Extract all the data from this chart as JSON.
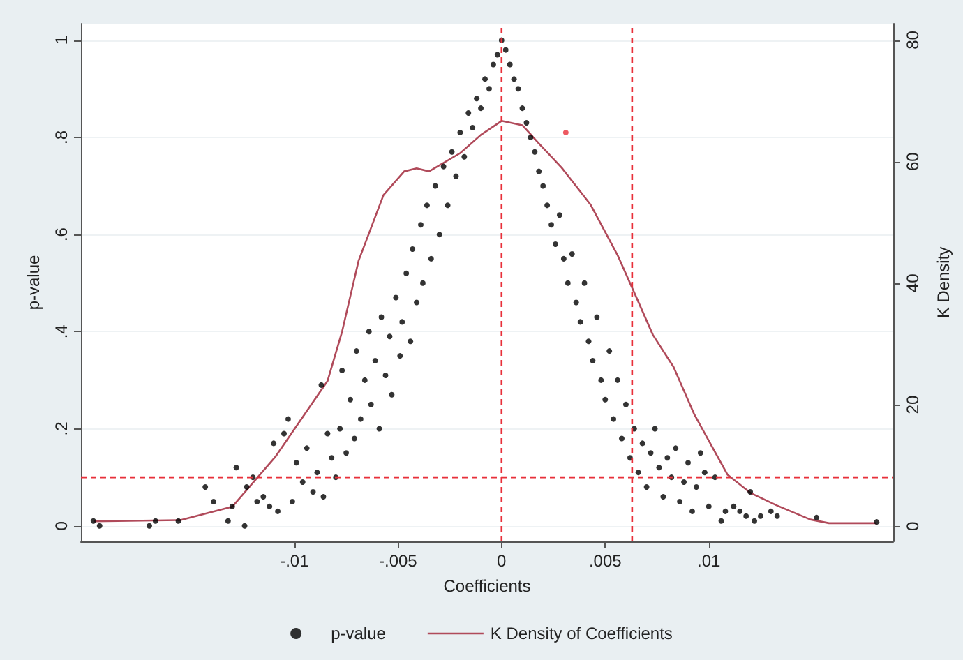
{
  "chart_data": {
    "type": "scatter",
    "xlabel": "Coefficients",
    "ylabel": "p-value",
    "y2label": "K Density",
    "xlim": [
      -0.0203,
      0.0189
    ],
    "xticks": [
      {
        "value": -0.01,
        "label": "-.01"
      },
      {
        "value": -0.005,
        "label": "-.005"
      },
      0,
      {
        "value": 0.005,
        "label": ".005"
      },
      {
        "value": 0.01,
        "label": ".01"
      }
    ],
    "ylim": [
      -0.032,
      1.034
    ],
    "yticks": [
      0,
      {
        "value": 0.2,
        "label": ".2"
      },
      {
        "value": 0.4,
        "label": ".4"
      },
      {
        "value": 0.6,
        "label": ".6"
      },
      {
        "value": 0.8,
        "label": ".8"
      },
      1
    ],
    "y2lim": [
      -2.5,
      82.7
    ],
    "y2ticks": [
      0,
      20,
      40,
      60,
      80
    ],
    "grid": "y",
    "legend": "bottom",
    "marker": "circle",
    "ref_lines": [
      {
        "axis": "x",
        "value": 0,
        "color": "#e8303a",
        "line_style": "dashed"
      },
      {
        "axis": "x",
        "value": 0.0063,
        "color": "#e8303a",
        "line_style": "dashed"
      },
      {
        "axis": "y",
        "value": 0.1,
        "color": "#e8303a",
        "line_style": "dashed"
      }
    ],
    "series": [
      {
        "name": "p-value",
        "color": "#000000",
        "x": [
          -0.0197,
          -0.0194,
          -0.017,
          -0.0167,
          -0.0156,
          -0.0143,
          -0.0139,
          -0.0132,
          -0.013,
          -0.0128,
          -0.0124,
          -0.0123,
          -0.012,
          -0.0118,
          -0.0115,
          -0.0112,
          -0.011,
          -0.0108,
          -0.0105,
          -0.0103,
          -0.0101,
          -0.0099,
          -0.0096,
          -0.0094,
          -0.0091,
          -0.0089,
          -0.0087,
          -0.0086,
          -0.0084,
          -0.0082,
          -0.008,
          -0.0078,
          -0.0077,
          -0.0075,
          -0.0073,
          -0.0071,
          -0.007,
          -0.0068,
          -0.0066,
          -0.0064,
          -0.0063,
          -0.0061,
          -0.0059,
          -0.0058,
          -0.0056,
          -0.0054,
          -0.0053,
          -0.0051,
          -0.0049,
          -0.0048,
          -0.0046,
          -0.0044,
          -0.0043,
          -0.0041,
          -0.0039,
          -0.0038,
          -0.0036,
          -0.0034,
          -0.0032,
          -0.003,
          -0.0028,
          -0.0026,
          -0.0024,
          -0.0022,
          -0.002,
          -0.0018,
          -0.0016,
          -0.0014,
          -0.0012,
          -0.001,
          -0.0008,
          -0.0006,
          -0.0004,
          -0.0002,
          0,
          0.0002,
          0.0004,
          0.0006,
          0.0008,
          0.001,
          0.0012,
          0.0014,
          0.0016,
          0.0018,
          0.002,
          0.0022,
          0.0024,
          0.0026,
          0.0028,
          0.003,
          0.0032,
          0.0034,
          0.0036,
          0.0038,
          0.004,
          0.0042,
          0.0044,
          0.0046,
          0.0048,
          0.005,
          0.0052,
          0.0054,
          0.0056,
          0.0058,
          0.006,
          0.0062,
          0.0064,
          0.0066,
          0.0068,
          0.007,
          0.0072,
          0.0074,
          0.0076,
          0.0078,
          0.008,
          0.0082,
          0.0084,
          0.0086,
          0.0088,
          0.009,
          0.0092,
          0.0094,
          0.0096,
          0.0098,
          0.01,
          0.0103,
          0.0106,
          0.0108,
          0.0112,
          0.0115,
          0.0118,
          0.012,
          0.0122,
          0.0125,
          0.013,
          0.0133,
          0.0152,
          0.0181
        ],
        "values": [
          0.01,
          0,
          0,
          0.01,
          0.01,
          0.08,
          0.05,
          0.01,
          0.04,
          0.12,
          0,
          0.08,
          0.1,
          0.05,
          0.06,
          0.04,
          0.17,
          0.03,
          0.19,
          0.22,
          0.05,
          0.13,
          0.09,
          0.16,
          0.07,
          0.11,
          0.29,
          0.06,
          0.19,
          0.14,
          0.1,
          0.2,
          0.32,
          0.15,
          0.26,
          0.18,
          0.36,
          0.22,
          0.3,
          0.4,
          0.25,
          0.34,
          0.2,
          0.43,
          0.31,
          0.39,
          0.27,
          0.47,
          0.35,
          0.42,
          0.52,
          0.38,
          0.57,
          0.46,
          0.62,
          0.5,
          0.66,
          0.55,
          0.7,
          0.6,
          0.74,
          0.66,
          0.77,
          0.72,
          0.81,
          0.76,
          0.85,
          0.82,
          0.88,
          0.86,
          0.92,
          0.9,
          0.95,
          0.97,
          1,
          0.98,
          0.95,
          0.92,
          0.9,
          0.86,
          0.83,
          0.8,
          0.77,
          0.73,
          0.7,
          0.66,
          0.62,
          0.58,
          0.64,
          0.55,
          0.5,
          0.56,
          0.46,
          0.42,
          0.5,
          0.38,
          0.34,
          0.43,
          0.3,
          0.26,
          0.36,
          0.22,
          0.3,
          0.18,
          0.25,
          0.14,
          0.2,
          0.11,
          0.17,
          0.08,
          0.15,
          0.2,
          0.12,
          0.06,
          0.14,
          0.1,
          0.16,
          0.05,
          0.09,
          0.13,
          0.03,
          0.08,
          0.15,
          0.11,
          0.04,
          0.1,
          0.01,
          0.03,
          0.04,
          0.03,
          0.02,
          0.07,
          0.01,
          0.02,
          0.03,
          0.02,
          0.017,
          0.008
        ]
      },
      {
        "color": "#e8303a",
        "x": [
          0.0031
        ],
        "values": [
          0.81
        ]
      },
      {
        "name": "K Density of Coefficients",
        "type": "line",
        "axis": "y2",
        "color": "#b04a5a",
        "marker": "none",
        "x": [
          -0.0197,
          -0.0155,
          -0.013,
          -0.0109,
          -0.0084,
          -0.0077,
          -0.0069,
          -0.0057,
          -0.0047,
          -0.0041,
          -0.0035,
          -0.002,
          -0.001,
          0,
          0.001,
          0.0018,
          0.0029,
          0.0043,
          0.0056,
          0.0065,
          0.0073,
          0.0083,
          0.0093,
          0.0109,
          0.012,
          0.0133,
          0.0149,
          0.0158,
          0.0181
        ],
        "values": [
          0.8,
          1,
          3.2,
          11.5,
          23.9,
          32,
          43.7,
          54.5,
          58.4,
          58.9,
          58.4,
          61.4,
          64.4,
          66.7,
          66,
          63,
          59,
          52.9,
          44.6,
          37.7,
          31.5,
          26.2,
          18.4,
          8.5,
          5.5,
          3.4,
          1.1,
          0.5,
          0.5
        ]
      }
    ]
  }
}
